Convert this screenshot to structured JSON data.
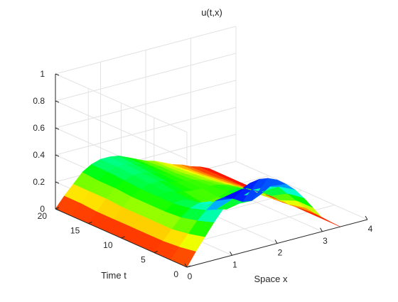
{
  "chart_data": {
    "type": "surface",
    "title": "u(t,x)",
    "xlabel": "Space x",
    "ylabel": "Time t",
    "zlabel": "",
    "xlim": [
      0,
      4
    ],
    "ylim": [
      0,
      20
    ],
    "zlim": [
      0,
      1
    ],
    "xticks": [
      "0",
      "1",
      "2",
      "3",
      "4"
    ],
    "yticks": [
      "0",
      "5",
      "10",
      "15",
      "20"
    ],
    "zticks": [
      "0",
      "0.2",
      "0.4",
      "0.6",
      "0.8",
      "1"
    ],
    "grid": true,
    "colormap": "hsv",
    "x": [
      0,
      0.2,
      0.4,
      0.6,
      0.8,
      1.0,
      1.2,
      1.4,
      1.6,
      1.8,
      2.0,
      2.2,
      2.4,
      2.6,
      2.8,
      3.0,
      3.2,
      3.4
    ],
    "t": [
      0,
      2.5,
      5,
      7.5,
      10,
      12.5,
      15,
      17.5,
      20
    ],
    "u": [
      [
        0.0,
        0.1,
        0.19,
        0.28,
        0.36,
        0.42,
        0.47,
        0.5,
        0.51,
        0.5,
        0.47,
        0.42,
        0.36,
        0.28,
        0.19,
        0.1,
        0.05,
        0.0
      ],
      [
        0.0,
        0.08,
        0.16,
        0.24,
        0.3,
        0.35,
        0.36,
        0.33,
        0.29,
        0.28,
        0.31,
        0.35,
        0.33,
        0.26,
        0.19,
        0.12,
        0.06,
        0.0
      ],
      [
        0.0,
        0.07,
        0.14,
        0.21,
        0.26,
        0.28,
        0.25,
        0.2,
        0.18,
        0.2,
        0.25,
        0.27,
        0.24,
        0.19,
        0.14,
        0.09,
        0.05,
        0.0
      ],
      [
        0.0,
        0.07,
        0.14,
        0.2,
        0.24,
        0.25,
        0.23,
        0.2,
        0.19,
        0.2,
        0.22,
        0.23,
        0.21,
        0.17,
        0.12,
        0.08,
        0.04,
        0.0
      ],
      [
        0.0,
        0.07,
        0.14,
        0.2,
        0.24,
        0.25,
        0.24,
        0.22,
        0.21,
        0.21,
        0.21,
        0.2,
        0.18,
        0.15,
        0.11,
        0.07,
        0.04,
        0.0
      ],
      [
        0.0,
        0.07,
        0.14,
        0.2,
        0.24,
        0.26,
        0.26,
        0.24,
        0.22,
        0.21,
        0.2,
        0.18,
        0.16,
        0.13,
        0.1,
        0.07,
        0.03,
        0.0
      ],
      [
        0.0,
        0.07,
        0.15,
        0.21,
        0.25,
        0.27,
        0.27,
        0.25,
        0.23,
        0.21,
        0.19,
        0.17,
        0.15,
        0.12,
        0.09,
        0.06,
        0.03,
        0.0
      ],
      [
        0.0,
        0.08,
        0.15,
        0.21,
        0.26,
        0.28,
        0.28,
        0.26,
        0.24,
        0.21,
        0.19,
        0.16,
        0.14,
        0.11,
        0.08,
        0.05,
        0.03,
        0.0
      ],
      [
        0.0,
        0.08,
        0.15,
        0.22,
        0.26,
        0.28,
        0.28,
        0.27,
        0.24,
        0.21,
        0.18,
        0.16,
        0.13,
        0.1,
        0.08,
        0.05,
        0.03,
        0.0
      ]
    ]
  }
}
